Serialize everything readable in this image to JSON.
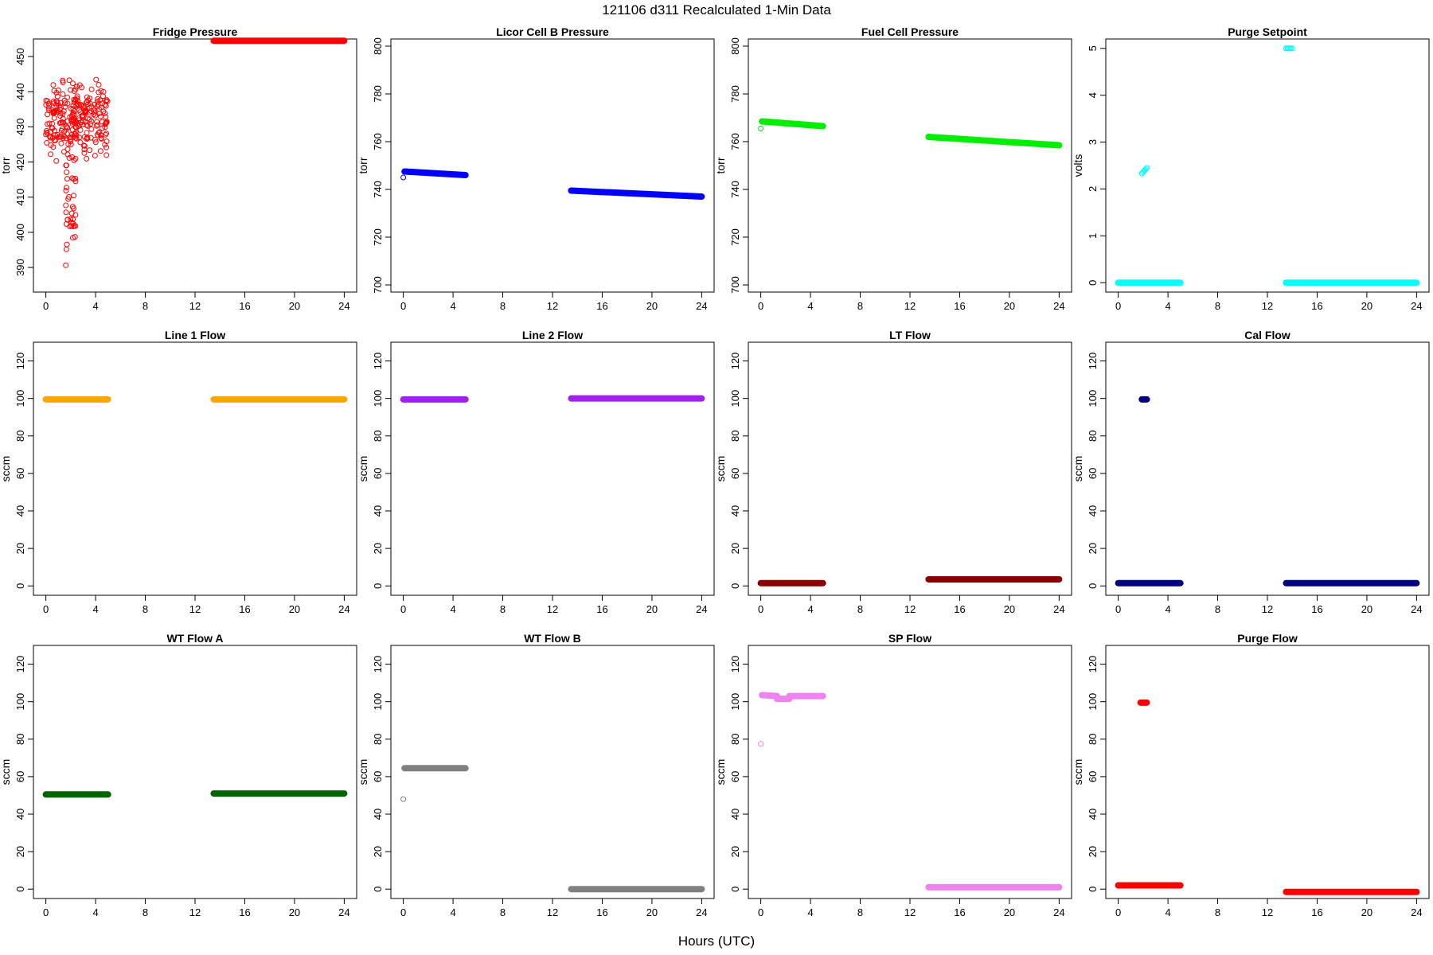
{
  "figure": {
    "title": "121106   d311   Recalculated 1-Min Data",
    "xlabel": "Hours (UTC)",
    "x_ticks": [
      0,
      4,
      8,
      12,
      16,
      20,
      24
    ],
    "x_lim": [
      -1,
      25
    ]
  },
  "chart_data": [
    {
      "type": "scatter",
      "title": "Fridge Pressure",
      "ylabel": "torr",
      "color": "#ff0000",
      "ylim": [
        383,
        455
      ],
      "y_ticks": [
        390,
        400,
        410,
        420,
        430,
        440,
        450
      ],
      "segments": [
        {
          "x_start": 0.0,
          "x_end": 5.0,
          "center": 433,
          "spread": 14,
          "kind": "scatter"
        },
        {
          "x_start": 1.6,
          "x_end": 2.4,
          "center": 412,
          "spread": 26,
          "kind": "scatter"
        },
        {
          "x_start": 13.5,
          "x_end": 24.0,
          "y_start": 454.5,
          "y_end": 454.5,
          "kind": "line"
        }
      ]
    },
    {
      "type": "scatter",
      "title": "Licor Cell B Pressure",
      "ylabel": "torr",
      "color": "#0000ff",
      "ylim": [
        697,
        803
      ],
      "y_ticks": [
        700,
        720,
        740,
        760,
        780,
        800
      ],
      "segments": [
        {
          "x_start": 0.0,
          "x_end": 0.0,
          "y_start": 745,
          "y_end": 745,
          "kind": "point"
        },
        {
          "x_start": 0.1,
          "x_end": 5.0,
          "y_start": 747.5,
          "y_end": 746,
          "kind": "line"
        },
        {
          "x_start": 13.5,
          "x_end": 24.0,
          "y_start": 739.5,
          "y_end": 737,
          "kind": "line"
        }
      ]
    },
    {
      "type": "scatter",
      "title": "Fuel Cell Pressure",
      "ylabel": "torr",
      "color": "#00ee00",
      "ylim": [
        697,
        803
      ],
      "y_ticks": [
        700,
        720,
        740,
        760,
        780,
        800
      ],
      "segments": [
        {
          "x_start": 0.0,
          "x_end": 0.0,
          "y_start": 765.5,
          "y_end": 765.5,
          "kind": "point"
        },
        {
          "x_start": 0.1,
          "x_end": 5.0,
          "y_start": 768.5,
          "y_end": 766.5,
          "kind": "line"
        },
        {
          "x_start": 13.5,
          "x_end": 24.0,
          "y_start": 762,
          "y_end": 758.5,
          "kind": "line"
        }
      ]
    },
    {
      "type": "scatter",
      "title": "Purge Setpoint",
      "ylabel": "volts",
      "color": "#00ffff",
      "ylim": [
        -0.2,
        5.2
      ],
      "y_ticks": [
        0,
        1,
        2,
        3,
        4,
        5
      ],
      "segments": [
        {
          "x_start": 0.0,
          "x_end": 5.0,
          "y_start": 0,
          "y_end": 0,
          "kind": "line"
        },
        {
          "x_start": 1.9,
          "x_end": 2.3,
          "y_start": 2.33,
          "y_end": 2.45,
          "kind": "scatter-line"
        },
        {
          "x_start": 13.5,
          "x_end": 14.0,
          "y_start": 5,
          "y_end": 5,
          "kind": "scatter-line"
        },
        {
          "x_start": 13.5,
          "x_end": 24.0,
          "y_start": 0,
          "y_end": 0,
          "kind": "line"
        }
      ]
    },
    {
      "type": "scatter",
      "title": "Line 1 Flow",
      "ylabel": "sccm",
      "color": "#ffa500",
      "ylim": [
        -5,
        130
      ],
      "y_ticks": [
        0,
        20,
        40,
        60,
        80,
        100,
        120
      ],
      "segments": [
        {
          "x_start": 0.0,
          "x_end": 5.0,
          "y_start": 99.5,
          "y_end": 99.5,
          "kind": "line"
        },
        {
          "x_start": 13.5,
          "x_end": 24.0,
          "y_start": 99.5,
          "y_end": 99.5,
          "kind": "line"
        }
      ]
    },
    {
      "type": "scatter",
      "title": "Line 2 Flow",
      "ylabel": "sccm",
      "color": "#a020f0",
      "ylim": [
        -5,
        130
      ],
      "y_ticks": [
        0,
        20,
        40,
        60,
        80,
        100,
        120
      ],
      "segments": [
        {
          "x_start": 0.0,
          "x_end": 5.0,
          "y_start": 99.5,
          "y_end": 99.5,
          "kind": "line"
        },
        {
          "x_start": 13.5,
          "x_end": 24.0,
          "y_start": 100,
          "y_end": 100,
          "kind": "line"
        }
      ]
    },
    {
      "type": "scatter",
      "title": "LT Flow",
      "ylabel": "sccm",
      "color": "#8b0000",
      "ylim": [
        -5,
        130
      ],
      "y_ticks": [
        0,
        20,
        40,
        60,
        80,
        100,
        120
      ],
      "segments": [
        {
          "x_start": 0.0,
          "x_end": 5.0,
          "y_start": 1.5,
          "y_end": 1.5,
          "kind": "line"
        },
        {
          "x_start": 13.5,
          "x_end": 24.0,
          "y_start": 3.5,
          "y_end": 3.5,
          "kind": "line"
        }
      ]
    },
    {
      "type": "scatter",
      "title": "Cal Flow",
      "ylabel": "sccm",
      "color": "#000080",
      "ylim": [
        -5,
        130
      ],
      "y_ticks": [
        0,
        20,
        40,
        60,
        80,
        100,
        120
      ],
      "segments": [
        {
          "x_start": 0.0,
          "x_end": 5.0,
          "y_start": 1.5,
          "y_end": 1.5,
          "kind": "line"
        },
        {
          "x_start": 1.9,
          "x_end": 2.3,
          "y_start": 99.5,
          "y_end": 99.5,
          "kind": "line"
        },
        {
          "x_start": 13.5,
          "x_end": 24.0,
          "y_start": 1.5,
          "y_end": 1.5,
          "kind": "line"
        }
      ]
    },
    {
      "type": "scatter",
      "title": "WT Flow A",
      "ylabel": "sccm",
      "color": "#006400",
      "ylim": [
        -5,
        130
      ],
      "y_ticks": [
        0,
        20,
        40,
        60,
        80,
        100,
        120
      ],
      "segments": [
        {
          "x_start": 0.0,
          "x_end": 5.0,
          "y_start": 50.5,
          "y_end": 50.5,
          "kind": "line"
        },
        {
          "x_start": 13.5,
          "x_end": 24.0,
          "y_start": 51,
          "y_end": 51,
          "kind": "line"
        }
      ]
    },
    {
      "type": "scatter",
      "title": "WT Flow B",
      "ylabel": "sccm",
      "color": "#808080",
      "ylim": [
        -5,
        130
      ],
      "y_ticks": [
        0,
        20,
        40,
        60,
        80,
        100,
        120
      ],
      "segments": [
        {
          "x_start": 0.0,
          "x_end": 0.0,
          "y_start": 48,
          "y_end": 48,
          "kind": "point"
        },
        {
          "x_start": 0.1,
          "x_end": 5.0,
          "y_start": 64.5,
          "y_end": 64.5,
          "kind": "line"
        },
        {
          "x_start": 13.5,
          "x_end": 24.0,
          "y_start": 0,
          "y_end": 0,
          "kind": "line"
        }
      ]
    },
    {
      "type": "scatter",
      "title": "SP Flow",
      "ylabel": "sccm",
      "color": "#ee82ee",
      "ylim": [
        -5,
        130
      ],
      "y_ticks": [
        0,
        20,
        40,
        60,
        80,
        100,
        120
      ],
      "segments": [
        {
          "x_start": 0.0,
          "x_end": 0.0,
          "y_start": 77.5,
          "y_end": 77.5,
          "kind": "point"
        },
        {
          "x_start": 0.1,
          "x_end": 1.3,
          "y_start": 103.5,
          "y_end": 103,
          "kind": "line"
        },
        {
          "x_start": 1.3,
          "x_end": 2.3,
          "y_start": 101.5,
          "y_end": 101.5,
          "kind": "line"
        },
        {
          "x_start": 2.3,
          "x_end": 5.0,
          "y_start": 103,
          "y_end": 103,
          "kind": "line"
        },
        {
          "x_start": 13.5,
          "x_end": 24.0,
          "y_start": 1,
          "y_end": 1,
          "kind": "line"
        }
      ]
    },
    {
      "type": "scatter",
      "title": "Purge Flow",
      "ylabel": "sccm",
      "color": "#ff0000",
      "ylim": [
        -5,
        130
      ],
      "y_ticks": [
        0,
        20,
        40,
        60,
        80,
        100,
        120
      ],
      "segments": [
        {
          "x_start": 0.0,
          "x_end": 5.0,
          "y_start": 2,
          "y_end": 2,
          "kind": "line"
        },
        {
          "x_start": 1.8,
          "x_end": 2.3,
          "y_start": 99.5,
          "y_end": 99.5,
          "kind": "line"
        },
        {
          "x_start": 13.5,
          "x_end": 24.0,
          "y_start": -1.5,
          "y_end": -1.5,
          "kind": "line"
        }
      ]
    }
  ]
}
